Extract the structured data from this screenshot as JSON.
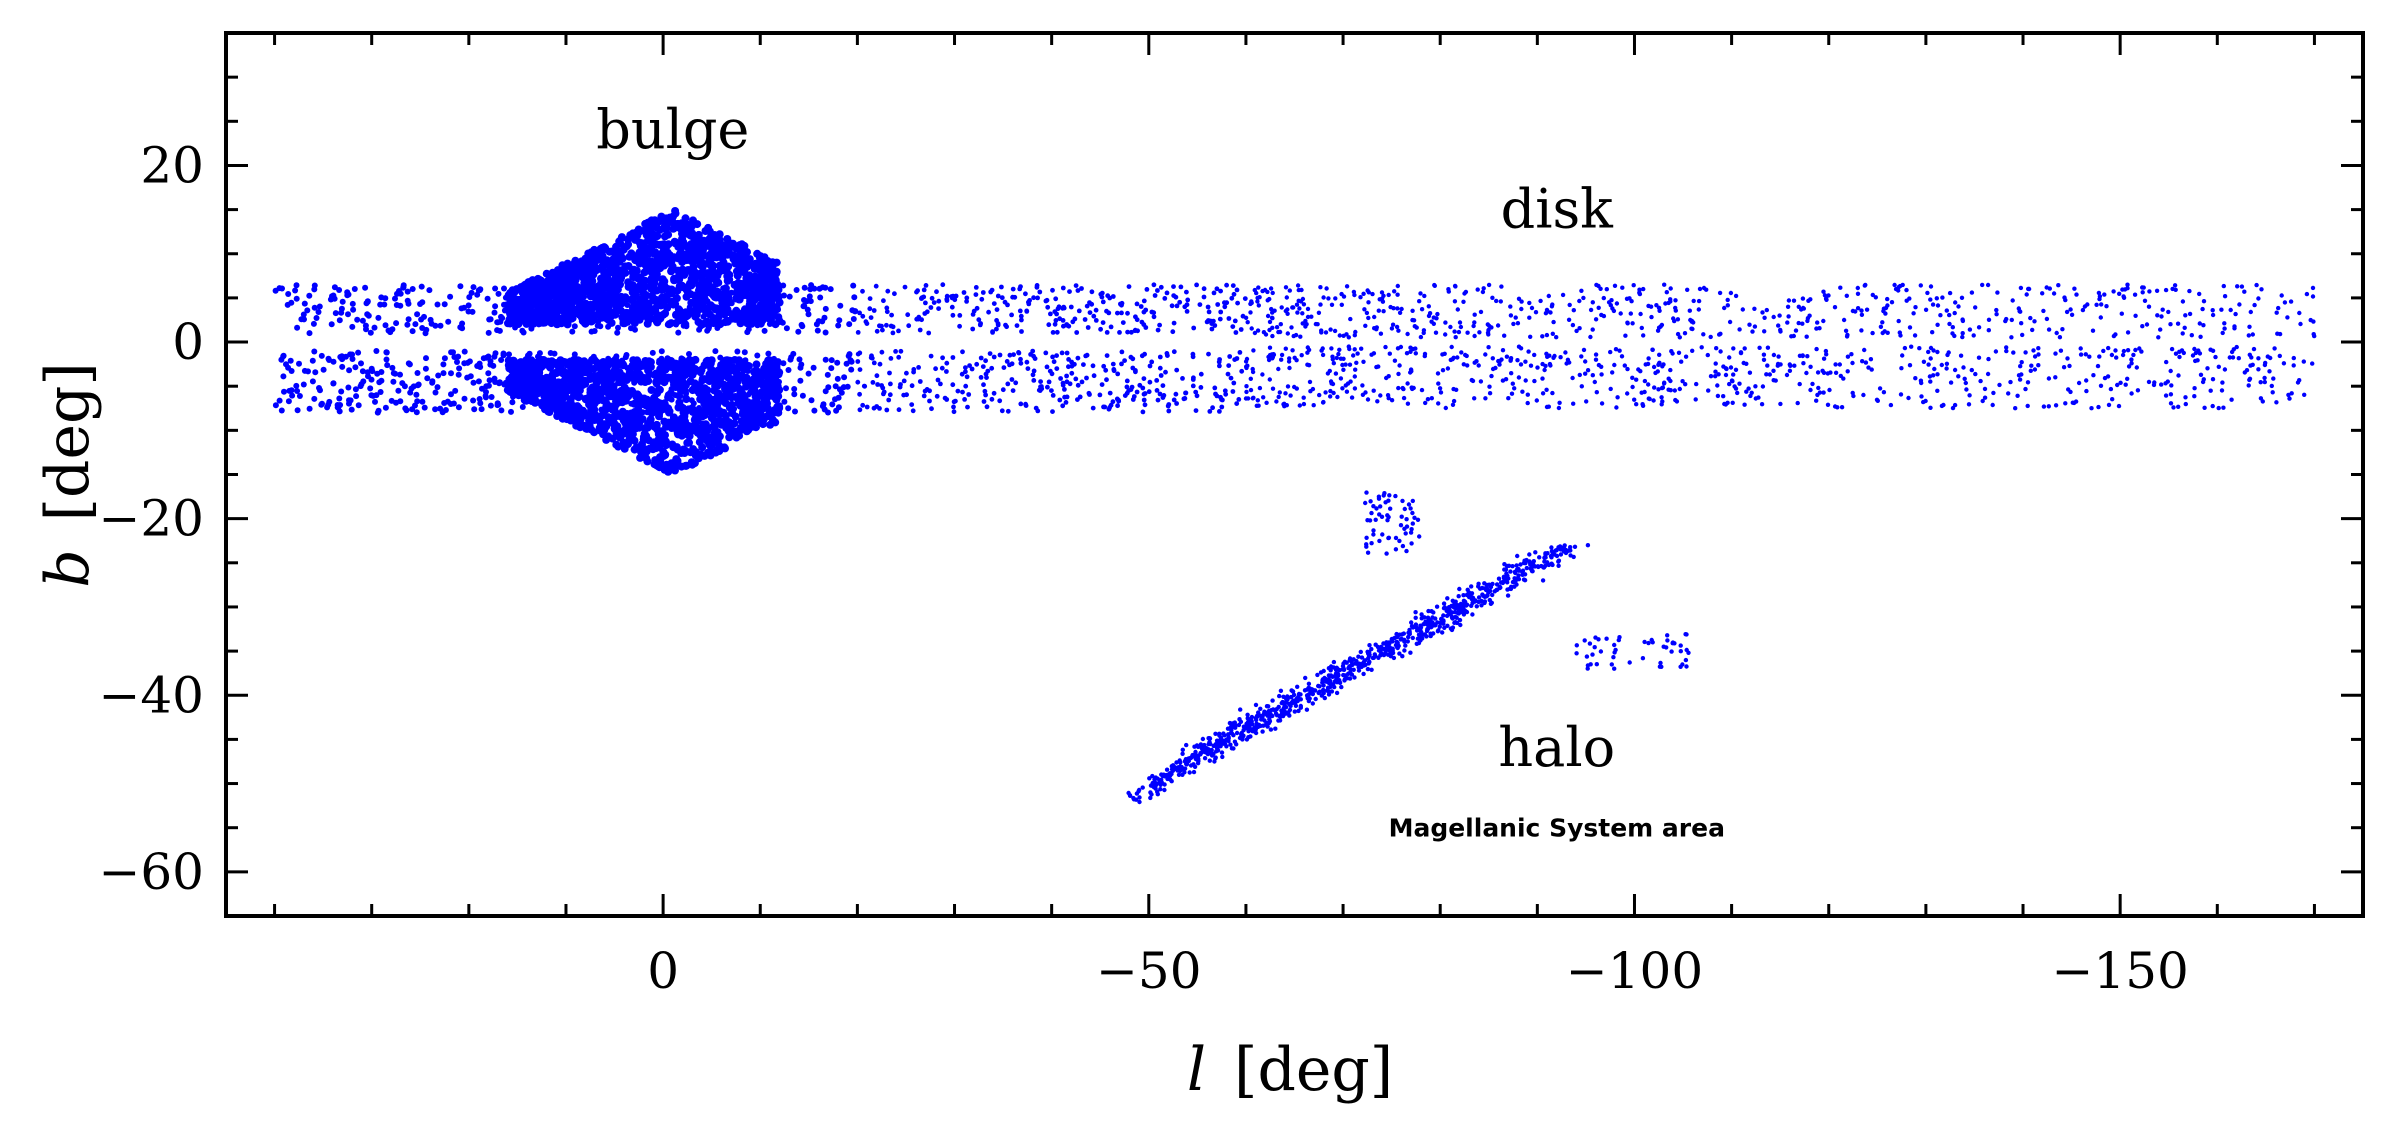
{
  "chart_data": {
    "type": "scatter",
    "xlabel_var": "l",
    "xlabel_unit": "[deg]",
    "ylabel_var": "b",
    "ylabel_unit": "[deg]",
    "x_reversed": true,
    "xlim": [
      45,
      -175
    ],
    "ylim": [
      -65,
      35
    ],
    "xticks_major": [
      0,
      -50,
      -100,
      -150
    ],
    "xtick_labels": [
      "0",
      "−50",
      "−100",
      "−150"
    ],
    "yticks_major": [
      20,
      0,
      -20,
      -40,
      -60
    ],
    "ytick_labels": [
      "20",
      "0",
      "−20",
      "−40",
      "−60"
    ],
    "grid": false,
    "legend": "none",
    "point_color": "#0000ff",
    "annotations": [
      {
        "text": "bulge",
        "x": -1,
        "y": 22
      },
      {
        "text": "disk",
        "x": -92,
        "y": 13
      },
      {
        "text": "halo",
        "x": -92,
        "y": -48
      },
      {
        "text": "Magellanic System area",
        "x": -92,
        "y": -56
      }
    ],
    "regions": [
      {
        "name": "bulge",
        "description_points": "dense cloud",
        "x_range": [
          17,
          -13
        ],
        "y_range": [
          -16,
          16
        ]
      },
      {
        "name": "disk",
        "x_range": [
          40,
          -170
        ],
        "y_range": [
          -8,
          7
        ]
      },
      {
        "name": "halo (Magellanic System area)",
        "x_range": [
          -43,
          -105
        ],
        "y_range": [
          -54,
          -17
        ]
      }
    ]
  }
}
